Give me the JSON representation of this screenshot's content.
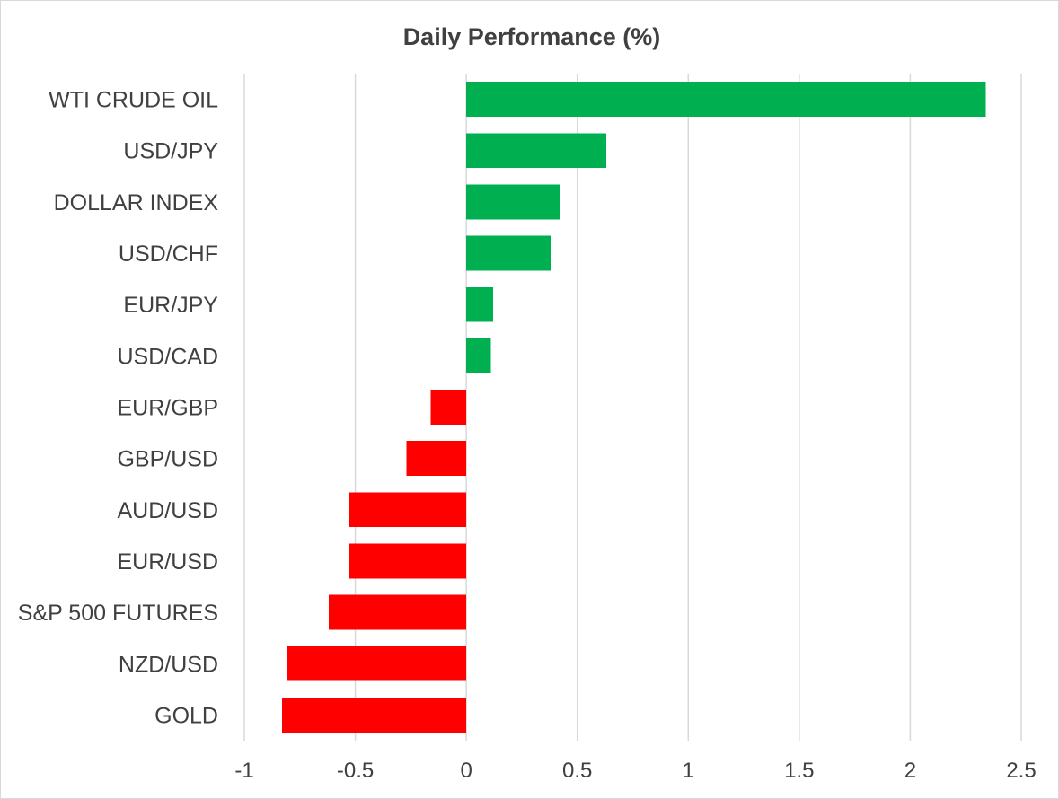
{
  "chart_data": {
    "type": "bar",
    "orientation": "horizontal",
    "title": "Daily Performance (%)",
    "xlabel": "",
    "ylabel": "",
    "xlim": [
      -1,
      2.5
    ],
    "x_ticks": [
      -1,
      -0.5,
      0,
      0.5,
      1,
      1.5,
      2,
      2.5
    ],
    "x_tick_labels": [
      "-1",
      "-0.5",
      "0",
      "0.5",
      "1",
      "1.5",
      "2",
      "2.5"
    ],
    "grid": "vertical",
    "legend": "none",
    "colors": {
      "positive": "#00b050",
      "negative": "#ff0000",
      "grid": "#d9d9d9",
      "text": "#404040"
    },
    "categories": [
      "WTI CRUDE OIL",
      "USD/JPY",
      "DOLLAR INDEX",
      "USD/CHF",
      "EUR/JPY",
      "USD/CAD",
      "EUR/GBP",
      "GBP/USD",
      "AUD/USD",
      "EUR/USD",
      "S&P 500 FUTURES",
      "NZD/USD",
      "GOLD"
    ],
    "values": [
      2.34,
      0.63,
      0.42,
      0.38,
      0.12,
      0.11,
      -0.16,
      -0.27,
      -0.53,
      -0.53,
      -0.62,
      -0.81,
      -0.83
    ]
  }
}
